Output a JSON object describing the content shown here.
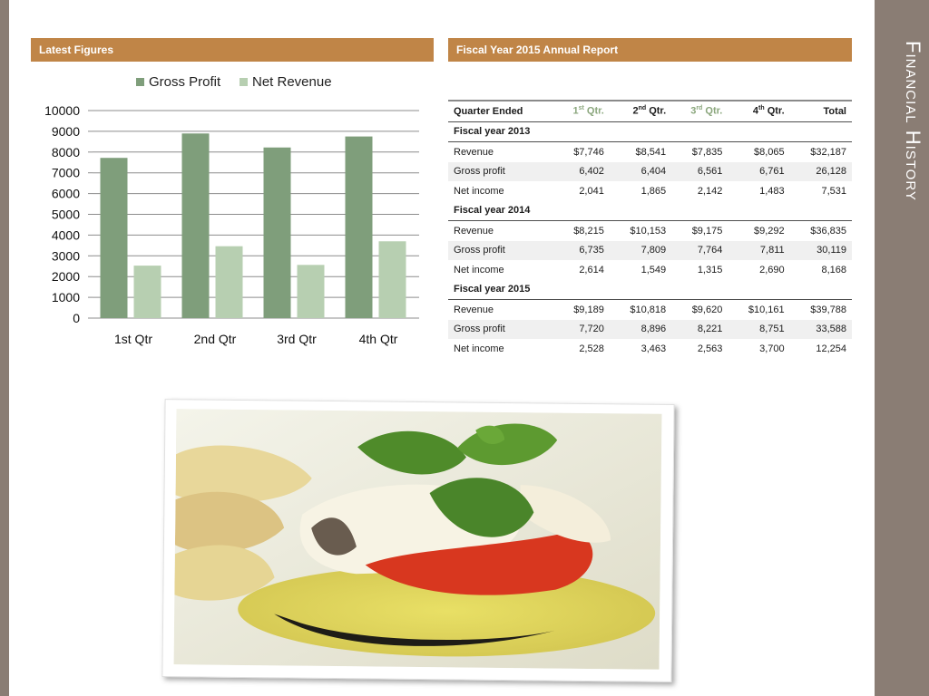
{
  "side_title": "Financial History",
  "left_panel": {
    "title": "Latest Figures"
  },
  "right_panel": {
    "title": "Fiscal Year 2015 Annual Report"
  },
  "colors": {
    "gross_profit": "#7f9e7b",
    "net_revenue": "#b7cfb1",
    "header": "#c08547",
    "band": "#8a7d74"
  },
  "chart_data": {
    "type": "bar",
    "categories": [
      "1st Qtr",
      "2nd Qtr",
      "3rd Qtr",
      "4th Qtr"
    ],
    "series": [
      {
        "name": "Gross Profit",
        "values": [
          7720,
          8896,
          8221,
          8751
        ]
      },
      {
        "name": "Net Revenue",
        "values": [
          2528,
          3463,
          2563,
          3700
        ]
      }
    ],
    "ylim": [
      0,
      10000
    ],
    "yticks": [
      "10000",
      "9000",
      "8000",
      "7000",
      "6000",
      "5000",
      "4000",
      "3000",
      "2000",
      "1000",
      "0"
    ],
    "legend": "top",
    "grid": true
  },
  "table": {
    "header": {
      "quarter_ended": "Quarter Ended",
      "q1": "1",
      "q1_sup": "st",
      "q2": "2",
      "q2_sup": "nd",
      "q3": "3",
      "q3_sup": "rd",
      "q4": "4",
      "q4_sup": "th",
      "qtr": "Qtr.",
      "total": "Total"
    },
    "sections": [
      {
        "title": "Fiscal year 2013",
        "rows": [
          {
            "label": "Revenue",
            "values": [
              "$7,746",
              "$8,541",
              "$7,835",
              "$8,065",
              "$32,187"
            ]
          },
          {
            "label": "Gross profit",
            "values": [
              "6,402",
              "6,404",
              "6,561",
              "6,761",
              "26,128"
            ]
          },
          {
            "label": "Net income",
            "values": [
              "2,041",
              "1,865",
              "2,142",
              "1,483",
              "7,531"
            ]
          }
        ]
      },
      {
        "title": "Fiscal year 2014",
        "rows": [
          {
            "label": "Revenue",
            "values": [
              "$8,215",
              "$10,153",
              "$9,175",
              "$9,292",
              "$36,835"
            ]
          },
          {
            "label": "Gross profit",
            "values": [
              "6,735",
              "7,809",
              "7,764",
              "7,811",
              "30,119"
            ]
          },
          {
            "label": "Net income",
            "values": [
              "2,614",
              "1,549",
              "1,315",
              "2,690",
              "8,168"
            ]
          }
        ]
      },
      {
        "title": "Fiscal year 2015",
        "rows": [
          {
            "label": "Revenue",
            "values": [
              "$9,189",
              "$10,818",
              "$9,620",
              "$10,161",
              "$39,788"
            ]
          },
          {
            "label": "Gross profit",
            "values": [
              "7,720",
              "8,896",
              "8,221",
              "8,751",
              "33,588"
            ]
          },
          {
            "label": "Net income",
            "values": [
              "2,528",
              "3,463",
              "2,563",
              "3,700",
              "12,254"
            ]
          }
        ]
      }
    ]
  }
}
